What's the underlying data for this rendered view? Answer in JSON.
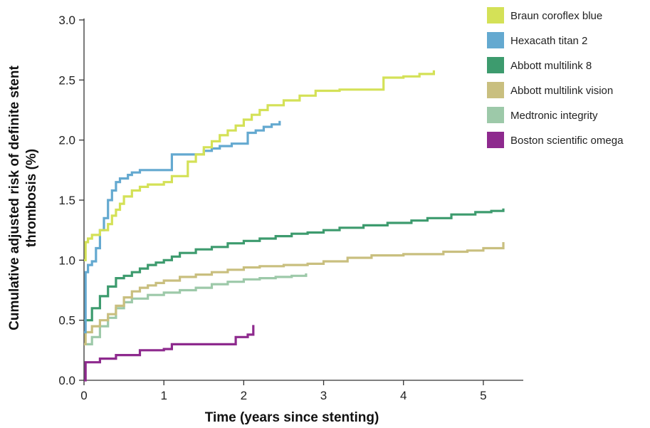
{
  "chart_data": {
    "type": "line",
    "step": true,
    "xlabel": "Time (years since stenting)",
    "ylabel": "Cumulative adjusted risk of definite stent thrombosis (%)",
    "xlim": [
      0,
      5.5
    ],
    "ylim": [
      0,
      3.0
    ],
    "xticks": [
      0,
      1,
      2,
      3,
      4,
      5
    ],
    "yticks": [
      0.0,
      0.5,
      1.0,
      1.5,
      2.0,
      2.5,
      3.0
    ],
    "xtick_labels": [
      "0",
      "1",
      "2",
      "3",
      "4",
      "5"
    ],
    "ytick_labels": [
      "0.0",
      "0.5",
      "1.0",
      "1.5",
      "2.0",
      "2.5",
      "3.0"
    ],
    "grid": false,
    "legend": "right",
    "series": [
      {
        "name": "Braun coroflex blue",
        "color": "#d4e157",
        "x": [
          0,
          0.02,
          0.05,
          0.1,
          0.2,
          0.3,
          0.35,
          0.4,
          0.45,
          0.5,
          0.6,
          0.7,
          0.8,
          1.0,
          1.1,
          1.3,
          1.4,
          1.5,
          1.6,
          1.7,
          1.8,
          1.9,
          2.0,
          2.1,
          2.2,
          2.3,
          2.5,
          2.7,
          2.9,
          3.2,
          3.5,
          3.75,
          4.0,
          4.2,
          4.38
        ],
        "y": [
          1.0,
          1.15,
          1.18,
          1.21,
          1.25,
          1.3,
          1.37,
          1.42,
          1.47,
          1.53,
          1.58,
          1.61,
          1.63,
          1.65,
          1.7,
          1.82,
          1.88,
          1.94,
          1.99,
          2.04,
          2.08,
          2.12,
          2.17,
          2.21,
          2.25,
          2.29,
          2.33,
          2.37,
          2.41,
          2.42,
          2.42,
          2.52,
          2.53,
          2.55,
          2.58
        ]
      },
      {
        "name": "Hexacath titan 2",
        "color": "#64a9d0",
        "x": [
          0,
          0.02,
          0.05,
          0.1,
          0.15,
          0.2,
          0.25,
          0.3,
          0.35,
          0.4,
          0.45,
          0.55,
          0.6,
          0.7,
          1.0,
          1.1,
          1.2,
          1.4,
          1.5,
          1.6,
          1.7,
          1.85,
          2.0,
          2.05,
          2.15,
          2.25,
          2.35,
          2.45
        ],
        "y": [
          0.4,
          0.9,
          0.96,
          0.99,
          1.1,
          1.25,
          1.35,
          1.5,
          1.58,
          1.65,
          1.68,
          1.71,
          1.73,
          1.75,
          1.75,
          1.88,
          1.88,
          1.88,
          1.91,
          1.93,
          1.95,
          1.97,
          1.97,
          2.06,
          2.08,
          2.11,
          2.13,
          2.16
        ]
      },
      {
        "name": "Abbott multilink 8",
        "color": "#3d9b6e",
        "x": [
          0,
          0.1,
          0.2,
          0.3,
          0.4,
          0.5,
          0.6,
          0.7,
          0.8,
          0.9,
          1.0,
          1.1,
          1.2,
          1.4,
          1.6,
          1.8,
          2.0,
          2.2,
          2.4,
          2.6,
          2.8,
          3.0,
          3.2,
          3.5,
          3.8,
          4.1,
          4.3,
          4.6,
          4.9,
          5.1,
          5.25
        ],
        "y": [
          0.5,
          0.6,
          0.7,
          0.78,
          0.85,
          0.87,
          0.9,
          0.93,
          0.96,
          0.98,
          1.0,
          1.03,
          1.06,
          1.09,
          1.11,
          1.14,
          1.16,
          1.18,
          1.2,
          1.22,
          1.23,
          1.25,
          1.27,
          1.29,
          1.31,
          1.33,
          1.35,
          1.38,
          1.4,
          1.41,
          1.43
        ]
      },
      {
        "name": "Abbott multilink vision",
        "color": "#c9bf7f",
        "x": [
          0,
          0.02,
          0.1,
          0.2,
          0.3,
          0.4,
          0.5,
          0.6,
          0.7,
          0.8,
          0.9,
          1.0,
          1.2,
          1.4,
          1.6,
          1.8,
          2.0,
          2.2,
          2.5,
          2.8,
          3.0,
          3.3,
          3.6,
          4.0,
          4.5,
          4.8,
          5.0,
          5.25
        ],
        "y": [
          0.3,
          0.4,
          0.45,
          0.5,
          0.55,
          0.62,
          0.69,
          0.74,
          0.77,
          0.79,
          0.81,
          0.83,
          0.86,
          0.88,
          0.9,
          0.92,
          0.94,
          0.95,
          0.96,
          0.97,
          0.99,
          1.02,
          1.04,
          1.05,
          1.07,
          1.08,
          1.1,
          1.15
        ]
      },
      {
        "name": "Medtronic integrity",
        "color": "#9dc9a9",
        "x": [
          0,
          0.1,
          0.2,
          0.3,
          0.4,
          0.5,
          0.6,
          0.8,
          1.0,
          1.2,
          1.4,
          1.6,
          1.8,
          2.0,
          2.2,
          2.4,
          2.6,
          2.78
        ],
        "y": [
          0.3,
          0.36,
          0.45,
          0.52,
          0.6,
          0.65,
          0.68,
          0.71,
          0.73,
          0.75,
          0.77,
          0.8,
          0.82,
          0.84,
          0.85,
          0.86,
          0.87,
          0.89
        ]
      },
      {
        "name": "Boston scientific omega",
        "color": "#8e2a8e",
        "x": [
          0,
          0.02,
          0.2,
          0.4,
          0.7,
          1.0,
          1.1,
          1.5,
          1.9,
          2.05,
          2.12
        ],
        "y": [
          0.0,
          0.15,
          0.18,
          0.21,
          0.25,
          0.26,
          0.3,
          0.3,
          0.36,
          0.38,
          0.46
        ]
      }
    ]
  }
}
